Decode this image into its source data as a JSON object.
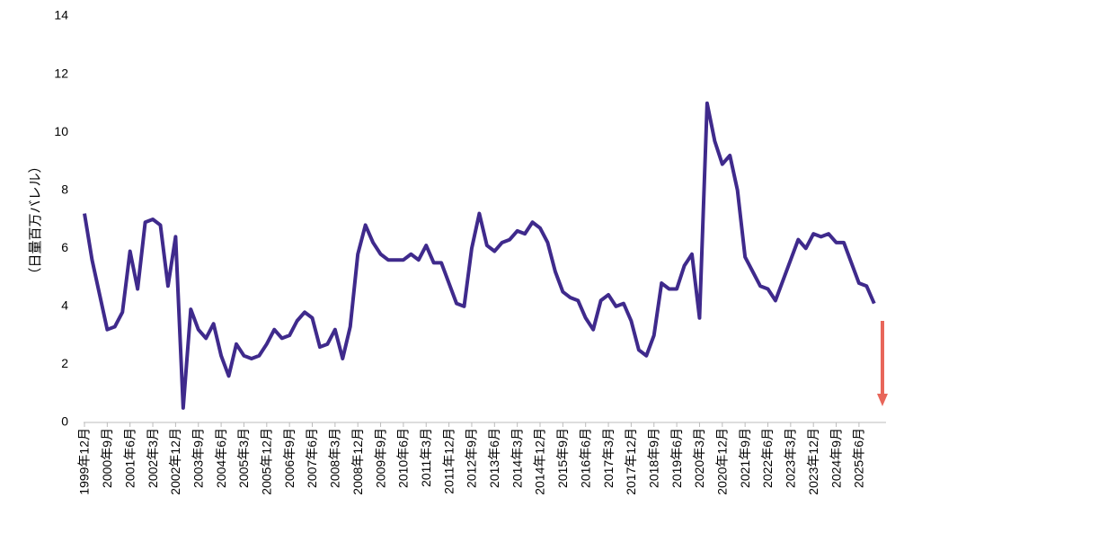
{
  "chart_data": {
    "type": "line",
    "y_label": "（日量百万バレル）",
    "categories": [
      "1999年12月",
      null,
      null,
      "2000年9月",
      null,
      null,
      "2001年6月",
      null,
      null,
      "2002年3月",
      null,
      null,
      "2002年12月",
      null,
      null,
      "2003年9月",
      null,
      null,
      "2004年6月",
      null,
      null,
      "2005年3月",
      null,
      null,
      "2005年12月",
      null,
      null,
      "2006年9月",
      null,
      null,
      "2007年6月",
      null,
      null,
      "2008年3月",
      null,
      null,
      "2008年12月",
      null,
      null,
      "2009年9月",
      null,
      null,
      "2010年6月",
      null,
      null,
      "2011年3月",
      null,
      null,
      "2011年12月",
      null,
      null,
      "2012年9月",
      null,
      null,
      "2013年6月",
      null,
      null,
      "2014年3月",
      null,
      null,
      "2014年12月",
      null,
      null,
      "2015年9月",
      null,
      null,
      "2016年6月",
      null,
      null,
      "2017年3月",
      null,
      null,
      "2017年12月",
      null,
      null,
      "2018年9月",
      null,
      null,
      "2019年6月",
      null,
      null,
      "2020年3月",
      null,
      null,
      "2020年12月",
      null,
      null,
      "2021年9月",
      null,
      null,
      "2022年6月",
      null,
      null,
      "2023年3月",
      null,
      null,
      "2023年12月",
      null,
      null,
      "2024年9月",
      null,
      null,
      "2025年6月",
      null,
      null
    ],
    "series": [
      {
        "color": "#3f2a8c",
        "values": [
          7.2,
          5.6,
          4.4,
          3.2,
          3.3,
          3.8,
          5.9,
          4.6,
          6.9,
          7.0,
          6.8,
          4.7,
          6.4,
          0.5,
          3.9,
          3.2,
          2.9,
          3.4,
          2.3,
          1.6,
          2.7,
          2.3,
          2.2,
          2.3,
          2.7,
          3.2,
          2.9,
          3.0,
          3.5,
          3.8,
          3.6,
          2.6,
          2.7,
          3.2,
          2.2,
          3.3,
          5.8,
          6.8,
          6.2,
          5.8,
          5.6,
          5.6,
          5.6,
          5.8,
          5.6,
          6.1,
          5.5,
          5.5,
          4.8,
          4.1,
          4.0,
          6.0,
          7.2,
          6.1,
          5.9,
          6.2,
          6.3,
          6.6,
          6.5,
          6.9,
          6.7,
          6.2,
          5.2,
          4.5,
          4.3,
          4.2,
          3.6,
          3.2,
          4.2,
          4.4,
          4.0,
          4.1,
          3.5,
          2.5,
          2.3,
          3.0,
          4.8,
          4.6,
          4.6,
          5.4,
          5.8,
          3.6,
          11.0,
          9.7,
          8.9,
          9.2,
          8.0,
          5.7,
          5.2,
          4.7,
          4.6,
          4.2,
          4.9,
          5.6,
          6.3,
          6.0,
          6.5,
          6.4,
          6.5,
          6.2,
          6.2,
          5.5,
          4.8,
          4.7,
          4.1
        ]
      }
    ],
    "ylim": [
      0,
      14
    ],
    "yticks": [
      0,
      2,
      4,
      6,
      8,
      10,
      12,
      14
    ],
    "grid": false
  }
}
